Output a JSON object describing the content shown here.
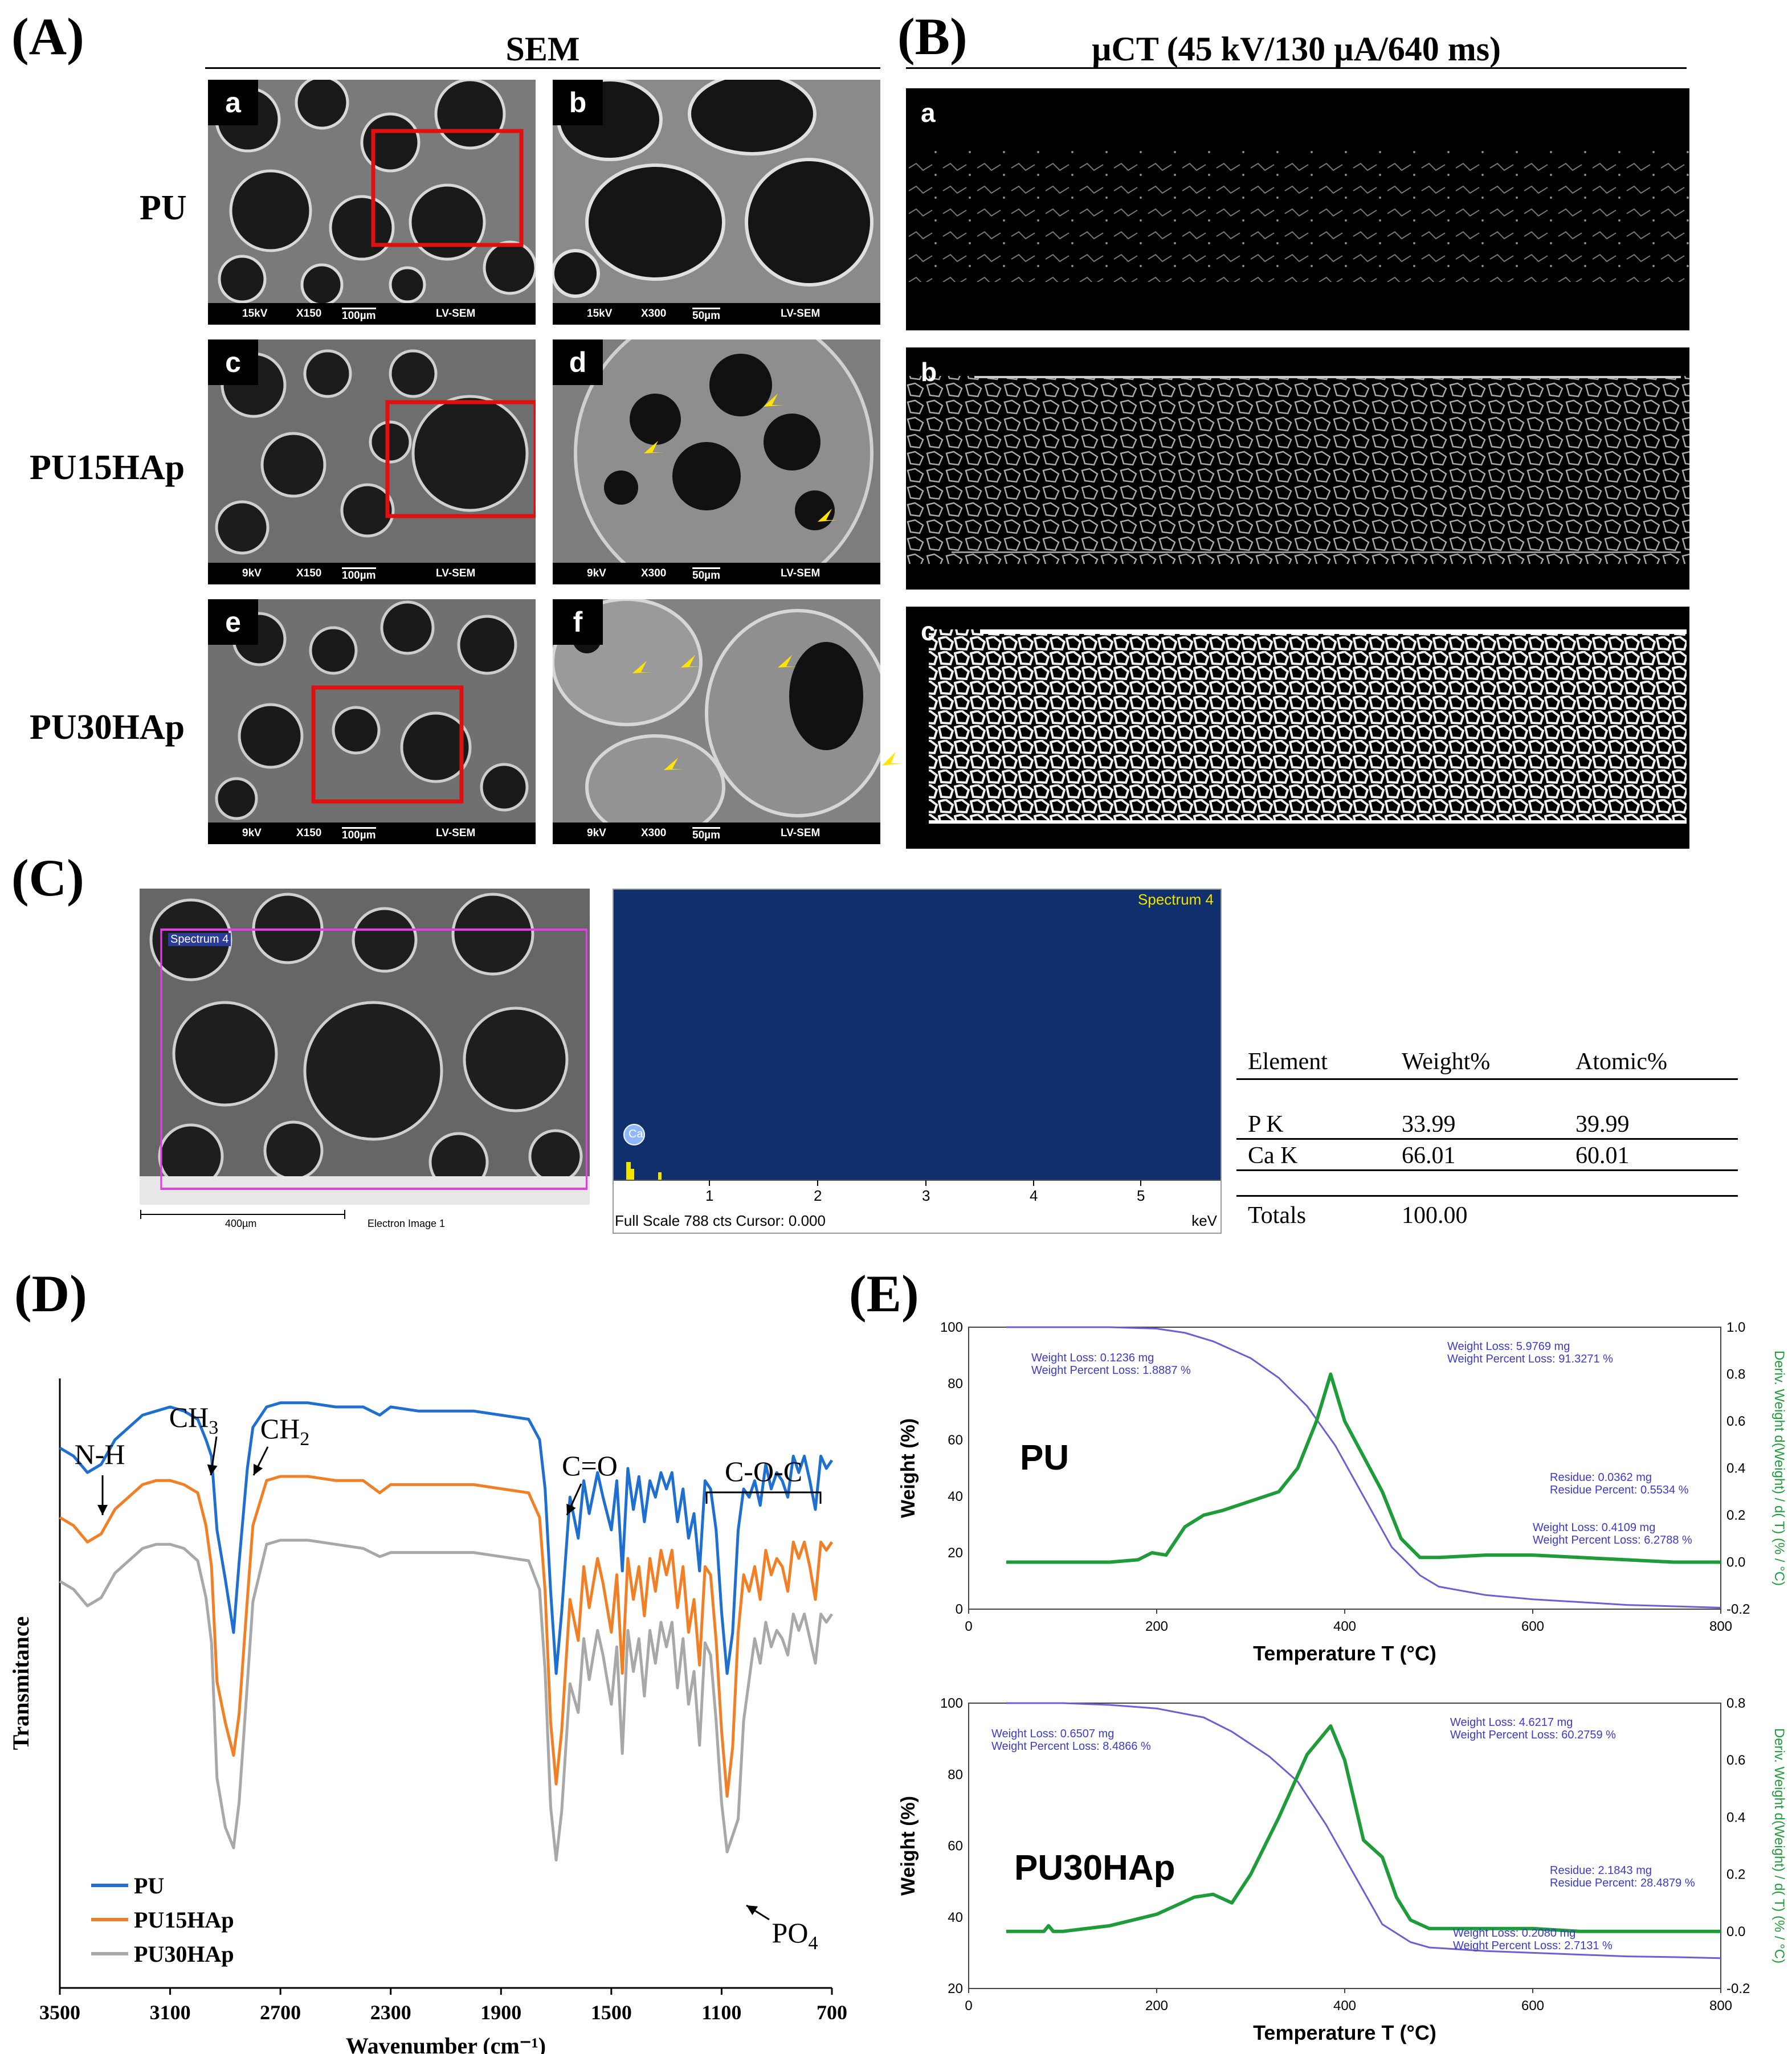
{
  "panel_labels": {
    "a": "(A)",
    "b": "(B)",
    "c": "(C)",
    "d": "(D)",
    "e": "(E)"
  },
  "panel_a": {
    "title": "SEM",
    "rows": [
      "PU",
      "PU15HAp",
      "PU30HAp"
    ],
    "tiles": [
      {
        "letter": "a",
        "kv": "15kV",
        "mag": "X150",
        "scale": "100µm",
        "mode": "LV-SEM"
      },
      {
        "letter": "b",
        "kv": "15kV",
        "mag": "X300",
        "scale": "50µm",
        "mode": "LV-SEM"
      },
      {
        "letter": "c",
        "kv": "9kV",
        "mag": "X150",
        "scale": "100µm",
        "mode": "LV-SEM"
      },
      {
        "letter": "d",
        "kv": "9kV",
        "mag": "X300",
        "scale": "50µm",
        "mode": "LV-SEM"
      },
      {
        "letter": "e",
        "kv": "9kV",
        "mag": "X150",
        "scale": "100µm",
        "mode": "LV-SEM"
      },
      {
        "letter": "f",
        "kv": "9kV",
        "mag": "X300",
        "scale": "50µm",
        "mode": "LV-SEM"
      }
    ]
  },
  "panel_b": {
    "title": "µCT (45 kV/130 µA/640 ms)",
    "tiles": [
      "a",
      "b",
      "c"
    ]
  },
  "panel_c": {
    "sem_spectrum_label": "Spectrum 4",
    "sem_scale": "400µm",
    "sem_caption": "Electron Image 1",
    "eds_title": "Spectrum 4",
    "eds_peak_label": "Ca",
    "eds_ticks": [
      "1",
      "2",
      "3",
      "4",
      "5"
    ],
    "eds_footer": "Full Scale 788 cts Cursor: 0.000",
    "eds_unit": "keV",
    "table": {
      "headers": [
        "Element",
        "Weight%",
        "Atomic%"
      ],
      "rows": [
        [
          "P K",
          "33.99",
          "39.99"
        ],
        [
          "Ca K",
          "66.01",
          "60.01"
        ]
      ],
      "totals_label": "Totals",
      "totals_value": "100.00"
    }
  },
  "chart_data": [
    {
      "type": "line",
      "panel": "D",
      "xlabel": "Wavenumber (cm⁻¹)",
      "ylabel": "Transmitance",
      "xlim": [
        3500,
        700
      ],
      "xticks": [
        3500,
        3100,
        2700,
        2300,
        1900,
        1500,
        1100,
        700
      ],
      "legend_position": "bottom-left",
      "annotations": [
        "N-H",
        "CH3",
        "CH2",
        "C=O",
        "C-O-C",
        "PO4"
      ],
      "x": [
        3500,
        3450,
        3400,
        3350,
        3300,
        3250,
        3200,
        3150,
        3100,
        3050,
        3000,
        2970,
        2950,
        2930,
        2900,
        2870,
        2850,
        2820,
        2800,
        2750,
        2700,
        2600,
        2500,
        2400,
        2340,
        2300,
        2200,
        2100,
        2000,
        1900,
        1800,
        1760,
        1740,
        1720,
        1700,
        1680,
        1650,
        1620,
        1600,
        1580,
        1550,
        1530,
        1500,
        1480,
        1460,
        1440,
        1420,
        1400,
        1380,
        1360,
        1340,
        1320,
        1300,
        1280,
        1260,
        1240,
        1220,
        1200,
        1180,
        1160,
        1140,
        1120,
        1100,
        1080,
        1060,
        1040,
        1020,
        1000,
        980,
        960,
        940,
        920,
        900,
        880,
        860,
        840,
        820,
        800,
        780,
        760,
        740,
        720,
        700
      ],
      "series": [
        {
          "name": "PU",
          "color": "#1f6fd1",
          "values": [
            90,
            88,
            84,
            86,
            92,
            95,
            98,
            99,
            100,
            99,
            97,
            92,
            88,
            70,
            58,
            45,
            62,
            85,
            95,
            100,
            101,
            101,
            100,
            100,
            98,
            100,
            99,
            99,
            99,
            98,
            97,
            92,
            80,
            55,
            35,
            50,
            78,
            68,
            82,
            74,
            84,
            78,
            70,
            82,
            60,
            85,
            75,
            83,
            72,
            82,
            78,
            84,
            80,
            84,
            72,
            80,
            68,
            74,
            60,
            82,
            80,
            70,
            50,
            35,
            45,
            70,
            80,
            78,
            82,
            76,
            86,
            80,
            84,
            82,
            78,
            88,
            84,
            88,
            82,
            75,
            88,
            85,
            87
          ]
        },
        {
          "name": "PU15HAp",
          "color": "#f07f25",
          "values": [
            80,
            78,
            74,
            76,
            82,
            85,
            88,
            89,
            89,
            88,
            86,
            78,
            68,
            40,
            30,
            22,
            32,
            60,
            78,
            89,
            90,
            90,
            89,
            89,
            86,
            88,
            88,
            88,
            88,
            87,
            86,
            80,
            62,
            30,
            15,
            28,
            60,
            50,
            68,
            58,
            70,
            64,
            52,
            66,
            42,
            70,
            60,
            68,
            56,
            70,
            62,
            72,
            66,
            72,
            58,
            68,
            52,
            60,
            44,
            68,
            66,
            50,
            28,
            12,
            24,
            52,
            66,
            62,
            68,
            60,
            72,
            66,
            70,
            68,
            62,
            74,
            70,
            74,
            68,
            60,
            74,
            72,
            74
          ]
        },
        {
          "name": "PU30HAp",
          "color": "#a8a8a8",
          "values": [
            70,
            68,
            64,
            66,
            72,
            75,
            78,
            79,
            79,
            78,
            75,
            66,
            55,
            22,
            10,
            5,
            16,
            45,
            65,
            79,
            80,
            80,
            79,
            78,
            76,
            77,
            77,
            77,
            77,
            76,
            75,
            68,
            48,
            15,
            2,
            14,
            45,
            38,
            56,
            46,
            58,
            52,
            40,
            54,
            28,
            58,
            48,
            56,
            42,
            58,
            50,
            60,
            54,
            60,
            44,
            56,
            40,
            48,
            30,
            55,
            52,
            36,
            16,
            4,
            8,
            12,
            36,
            46,
            56,
            50,
            60,
            54,
            58,
            56,
            52,
            62,
            58,
            62,
            56,
            50,
            62,
            60,
            62
          ]
        }
      ]
    },
    {
      "type": "line",
      "panel": "E-top",
      "label": "PU",
      "xlabel": "Temperature T (°C)",
      "ylabel": "Weight (%)",
      "y2label": "Deriv. Weight d(Weight) / d( T) (% / °C)",
      "xlim": [
        0,
        800
      ],
      "ylim": [
        0,
        100
      ],
      "y2lim": [
        -0.2,
        1.0
      ],
      "xticks": [
        0,
        200,
        400,
        600,
        800
      ],
      "yticks": [
        0,
        20,
        40,
        60,
        80,
        100
      ],
      "y2ticks": [
        -0.2,
        0.0,
        0.2,
        0.4,
        0.6,
        0.8,
        1.0
      ],
      "annotations": [
        "Weight Loss: 0.1236 mg",
        "Weight Percent Loss: 1.8887 %",
        "Weight Loss: 5.9769 mg",
        "Weight Percent Loss: 91.3271 %",
        "Residue: 0.0362 mg",
        "Residue Percent: 0.5534 %",
        "Weight Loss: 0.4109 mg",
        "Weight Percent Loss: 6.2788 %"
      ],
      "series": [
        {
          "name": "Weight",
          "color": "#6f5cd6",
          "axis": "left",
          "x": [
            40,
            100,
            150,
            200,
            230,
            260,
            300,
            330,
            360,
            390,
            420,
            450,
            480,
            500,
            550,
            600,
            650,
            700,
            750,
            800
          ],
          "values": [
            100,
            100,
            100,
            99.5,
            98,
            95,
            89,
            82,
            72,
            58,
            40,
            22,
            12,
            8,
            5,
            3.5,
            2.5,
            1.5,
            1,
            0.5
          ]
        },
        {
          "name": "Derivative",
          "color": "#1f9c3a",
          "axis": "right",
          "x": [
            40,
            100,
            150,
            180,
            195,
            210,
            230,
            250,
            270,
            300,
            330,
            350,
            370,
            385,
            400,
            420,
            440,
            460,
            480,
            500,
            550,
            600,
            650,
            700,
            750,
            800
          ],
          "values": [
            0.0,
            0.0,
            0.0,
            0.01,
            0.04,
            0.03,
            0.15,
            0.2,
            0.22,
            0.26,
            0.3,
            0.4,
            0.6,
            0.8,
            0.6,
            0.45,
            0.3,
            0.1,
            0.02,
            0.02,
            0.03,
            0.03,
            0.02,
            0.01,
            0.0,
            0.0
          ]
        }
      ]
    },
    {
      "type": "line",
      "panel": "E-bottom",
      "label": "PU30HAp",
      "xlabel": "Temperature T (°C)",
      "ylabel": "Weight (%)",
      "y2label": "Deriv. Weight d(Weight) / d( T) (% / °C)",
      "xlim": [
        0,
        800
      ],
      "ylim": [
        20,
        100
      ],
      "y2lim": [
        -0.2,
        0.8
      ],
      "xticks": [
        0,
        200,
        400,
        600,
        800
      ],
      "yticks": [
        20,
        40,
        60,
        80,
        100
      ],
      "y2ticks": [
        -0.2,
        0.0,
        0.2,
        0.4,
        0.6,
        0.8
      ],
      "annotations": [
        "Weight Loss: 0.6507 mg",
        "Weight Percent Loss: 8.4866 %",
        "Weight Loss: 4.6217 mg",
        "Weight Percent Loss: 60.2759 %",
        "Residue: 2.1843 mg",
        "Residue Percent: 28.4879 %",
        "Weight Loss: 0.2080 mg",
        "Weight Percent Loss: 2.7131 %"
      ],
      "series": [
        {
          "name": "Weight",
          "color": "#6f5cd6",
          "axis": "left",
          "x": [
            40,
            100,
            150,
            200,
            250,
            280,
            320,
            350,
            380,
            410,
            440,
            470,
            490,
            550,
            600,
            650,
            700,
            750,
            800
          ],
          "values": [
            100,
            100,
            99.5,
            98.5,
            96,
            92,
            85,
            78,
            66,
            52,
            38,
            33,
            31.5,
            30.5,
            30,
            29.5,
            29,
            28.8,
            28.5
          ]
        },
        {
          "name": "Derivative",
          "color": "#1f9c3a",
          "axis": "right",
          "x": [
            40,
            80,
            85,
            90,
            100,
            150,
            200,
            240,
            260,
            280,
            300,
            330,
            360,
            385,
            400,
            420,
            440,
            455,
            470,
            490,
            550,
            600,
            650,
            700,
            750,
            800
          ],
          "values": [
            0.0,
            0.0,
            0.02,
            0.0,
            0.0,
            0.02,
            0.06,
            0.12,
            0.13,
            0.1,
            0.2,
            0.4,
            0.62,
            0.72,
            0.6,
            0.32,
            0.26,
            0.12,
            0.04,
            0.01,
            0.01,
            0.01,
            0.0,
            0.0,
            0.0,
            0.0
          ]
        }
      ]
    }
  ]
}
